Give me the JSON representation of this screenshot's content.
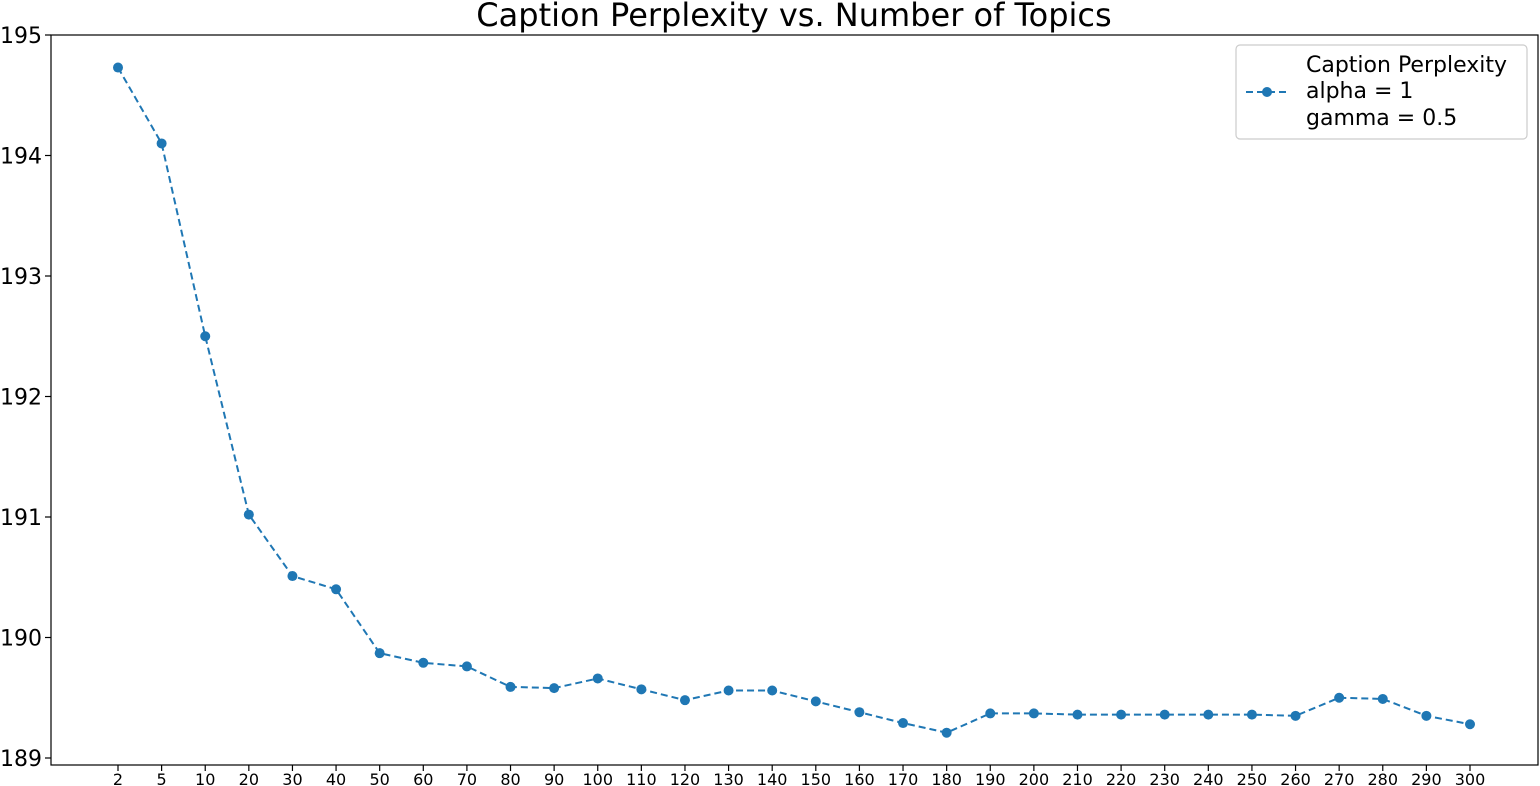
{
  "chart_data": {
    "type": "line",
    "title": "Caption Perplexity vs. Number of Topics",
    "xlabel": "",
    "ylabel": "",
    "categories": [
      "2",
      "5",
      "10",
      "20",
      "30",
      "40",
      "50",
      "60",
      "70",
      "80",
      "90",
      "100",
      "110",
      "120",
      "130",
      "140",
      "150",
      "160",
      "170",
      "180",
      "190",
      "200",
      "210",
      "220",
      "230",
      "240",
      "250",
      "260",
      "270",
      "280",
      "290",
      "300"
    ],
    "yticks": [
      "189",
      "190",
      "191",
      "192",
      "193",
      "194",
      "195"
    ],
    "ylim": [
      189,
      195
    ],
    "grid": false,
    "legend_position": "top-right",
    "series": [
      {
        "name": "Caption Perplexity",
        "color": "#1f77b4",
        "line_style": "dashed",
        "marker": "circle",
        "values": [
          194.73,
          194.1,
          192.5,
          191.02,
          190.51,
          190.4,
          189.87,
          189.79,
          189.76,
          189.59,
          189.58,
          189.66,
          189.57,
          189.48,
          189.56,
          189.56,
          189.47,
          189.38,
          189.29,
          189.21,
          189.37,
          189.37,
          189.36,
          189.36,
          189.36,
          189.36,
          189.36,
          189.35,
          189.5,
          189.49,
          189.35,
          189.28
        ]
      }
    ],
    "legend": {
      "lines": [
        "Caption Perplexity",
        "alpha = 1",
        "gamma = 0.5"
      ]
    }
  }
}
